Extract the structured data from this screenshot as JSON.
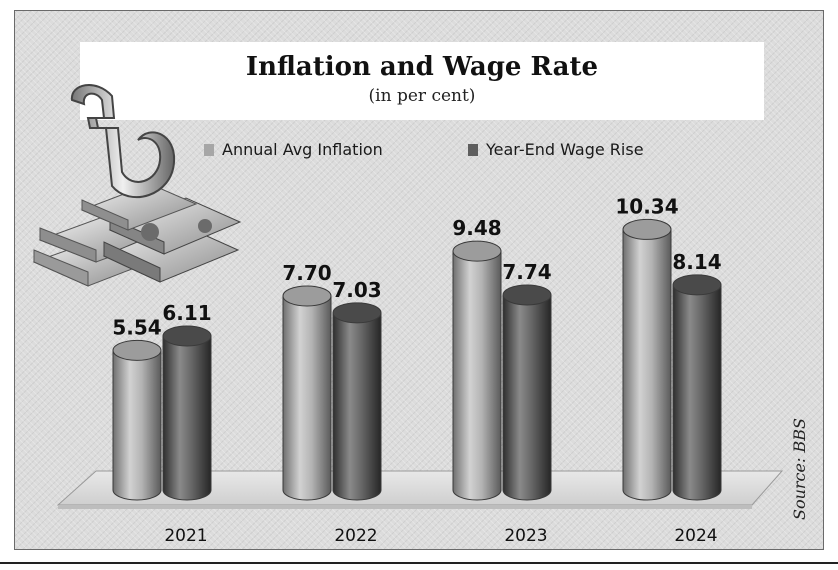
{
  "chart_data": {
    "type": "bar",
    "title": "Inflation and Wage Rate",
    "subtitle": "(in  per cent)",
    "categories": [
      "2021",
      "2022",
      "2023",
      "2024"
    ],
    "series": [
      {
        "name": "Annual Avg Inflation",
        "values": [
          5.54,
          7.7,
          9.48,
          10.34
        ],
        "color": "#a6a6a6"
      },
      {
        "name": "Year-End Wage Rise",
        "values": [
          6.11,
          7.03,
          7.74,
          8.14
        ],
        "color": "#5e5e5e"
      }
    ],
    "value_labels": [
      [
        "5.54",
        "7.70",
        "9.48",
        "10.34"
      ],
      [
        "6.11",
        "7.03",
        "7.74",
        "8.14"
      ]
    ],
    "ylim": [
      0,
      12
    ],
    "legend_position": "top",
    "grid": false,
    "style": "3d-cylinder"
  },
  "source": "Source: BBS",
  "decoration": {
    "icon": "taka-currency-icon"
  }
}
